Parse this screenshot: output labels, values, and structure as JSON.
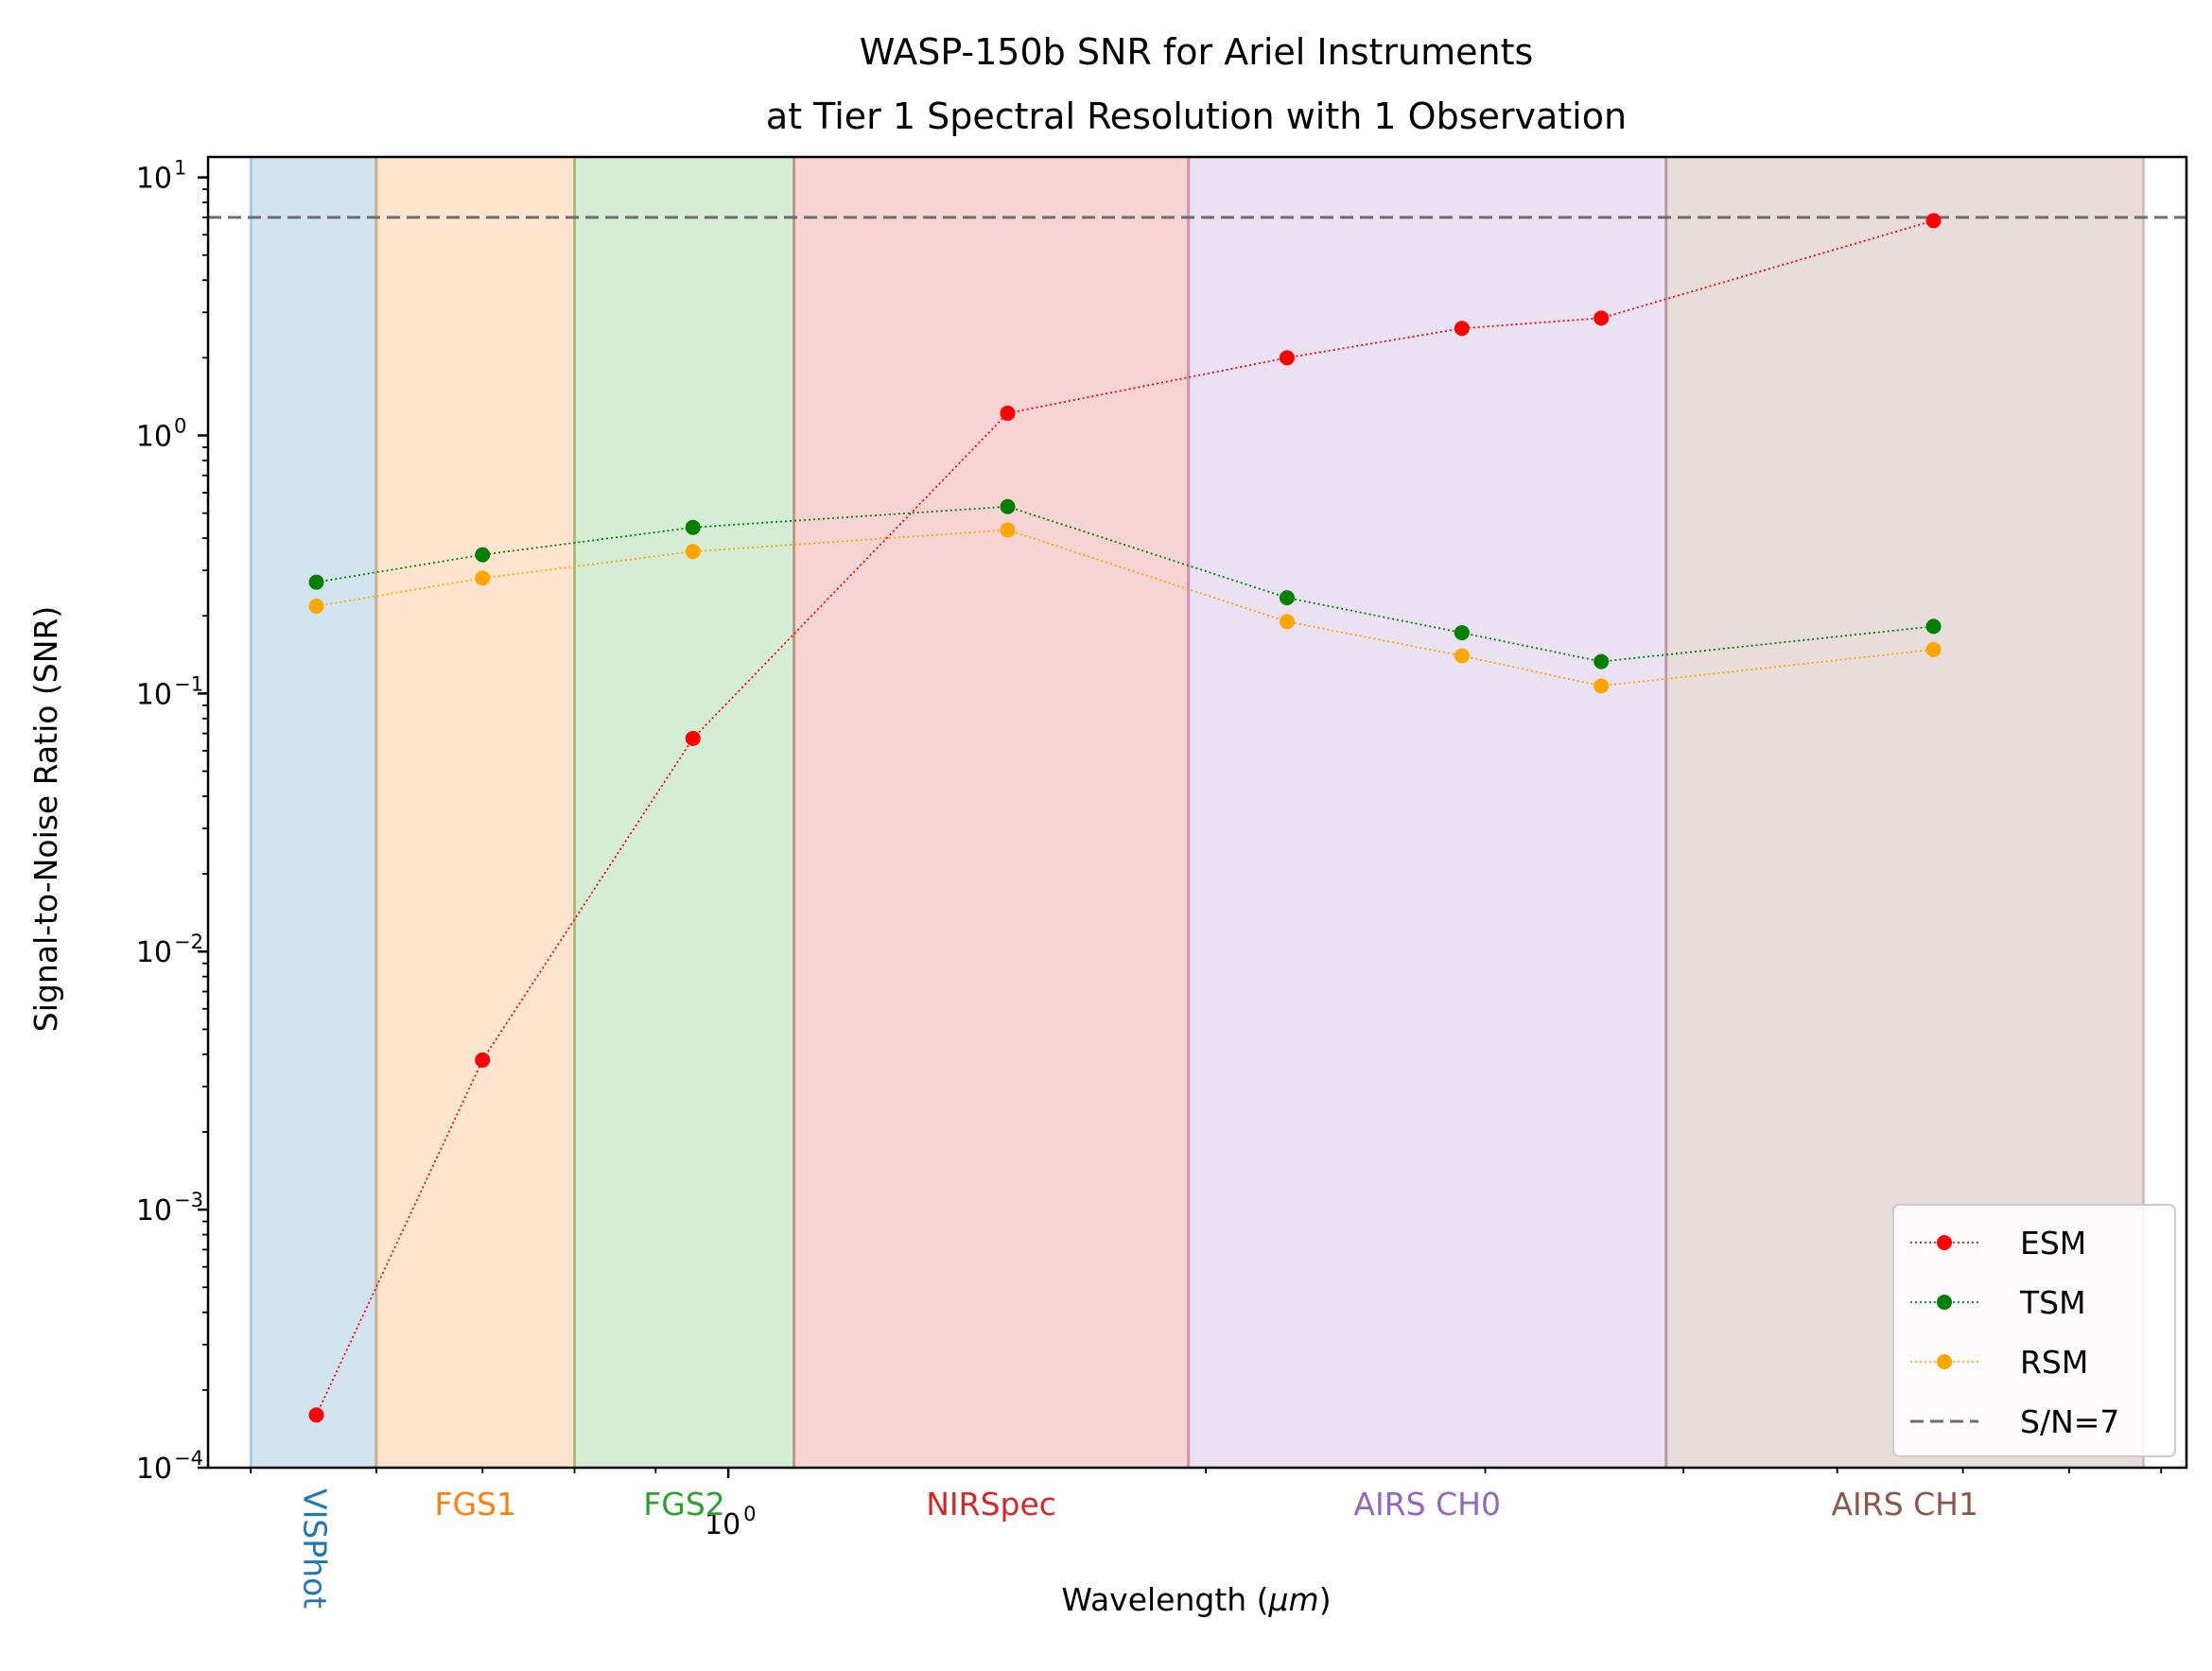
{
  "chart_data": {
    "type": "line",
    "title": "WASP-150b SNR for Ariel Instruments",
    "subtitle": "at Tier 1 Spectral Resolution with 1 Observation",
    "xlabel_prefix": "Wavelength (",
    "xlabel_unit": "μm",
    "xlabel_suffix": ")",
    "ylabel": "Signal-to-Noise Ratio (SNR)",
    "x_scale": "log",
    "y_scale": "log",
    "xlim": [
      0.47,
      8.3
    ],
    "ylim": [
      0.0001,
      12
    ],
    "x_tick_labels": [
      {
        "base": "10",
        "exp": "0",
        "value": 1.0
      }
    ],
    "y_tick_labels": [
      {
        "base": "10",
        "exp": "1",
        "value": 10
      },
      {
        "base": "10",
        "exp": "0",
        "value": 1
      },
      {
        "base": "10",
        "exp": "−1",
        "value": 0.1
      },
      {
        "base": "10",
        "exp": "−2",
        "value": 0.01
      },
      {
        "base": "10",
        "exp": "−3",
        "value": 0.001
      },
      {
        "base": "10",
        "exp": "−4",
        "value": 0.0001
      }
    ],
    "bands": [
      {
        "name": "VISPhot",
        "range": [
          0.5,
          0.6
        ],
        "color": "#1f77b4",
        "label_rotated": true
      },
      {
        "name": "FGS1",
        "range": [
          0.6,
          0.8
        ],
        "color": "#ff7f0e",
        "label_rotated": false
      },
      {
        "name": "FGS2",
        "range": [
          0.8,
          1.1
        ],
        "color": "#2ca02c",
        "label_rotated": false
      },
      {
        "name": "NIRSpec",
        "range": [
          1.1,
          1.95
        ],
        "color": "#d62728",
        "label_rotated": false
      },
      {
        "name": "AIRS CH0",
        "range": [
          1.95,
          3.9
        ],
        "color": "#9467bd",
        "label_rotated": false
      },
      {
        "name": "AIRS CH1",
        "range": [
          3.9,
          7.8
        ],
        "color": "#8c564b",
        "label_rotated": false
      }
    ],
    "x": [
      0.55,
      0.7,
      0.95,
      1.5,
      2.25,
      2.9,
      3.55,
      5.75
    ],
    "series": [
      {
        "name": "ESM",
        "color": "#ff0000",
        "values": [
          0.00016,
          0.0038,
          0.067,
          1.22,
          2.0,
          2.6,
          2.85,
          6.8
        ]
      },
      {
        "name": "TSM",
        "color": "#008000",
        "values": [
          0.27,
          0.345,
          0.44,
          0.53,
          0.235,
          0.172,
          0.133,
          0.182
        ]
      },
      {
        "name": "RSM",
        "color": "#ffa500",
        "values": [
          0.218,
          0.28,
          0.355,
          0.43,
          0.19,
          0.14,
          0.107,
          0.148
        ]
      }
    ],
    "threshold": {
      "name": "S/N=7",
      "value": 7,
      "color": "#6e6e6e"
    },
    "legend_position": "lower right",
    "grid": false
  }
}
